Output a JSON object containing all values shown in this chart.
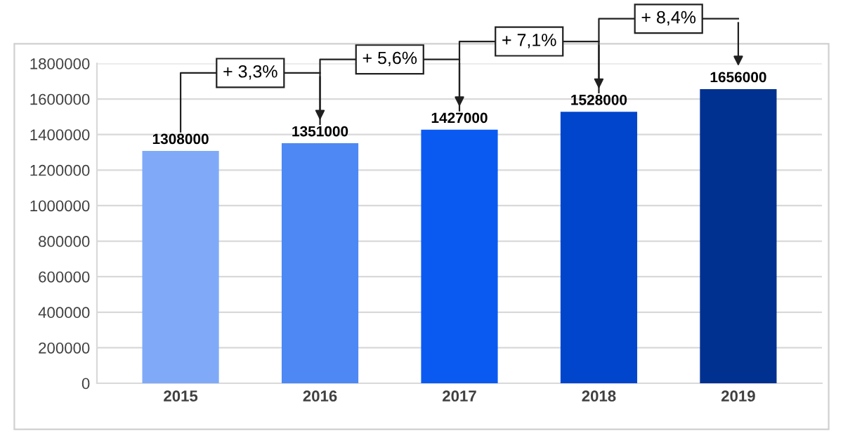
{
  "chart_data": {
    "type": "bar",
    "categories": [
      "2015",
      "2016",
      "2017",
      "2018",
      "2019"
    ],
    "values": [
      1308000,
      1351000,
      1427000,
      1528000,
      1656000
    ],
    "colors": [
      "#80aaf8",
      "#4d88f5",
      "#0a5af2",
      "#0045cc",
      "#003090"
    ],
    "ylim": [
      0,
      1800000
    ],
    "yticks": [
      0,
      200000,
      400000,
      600000,
      800000,
      1000000,
      1200000,
      1400000,
      1600000,
      1800000
    ],
    "grid": "y",
    "data_labels": true,
    "annotations": [
      "+ 3,3%",
      "+ 5,6%",
      "+ 7,1%",
      "+ 8,4%"
    ]
  }
}
